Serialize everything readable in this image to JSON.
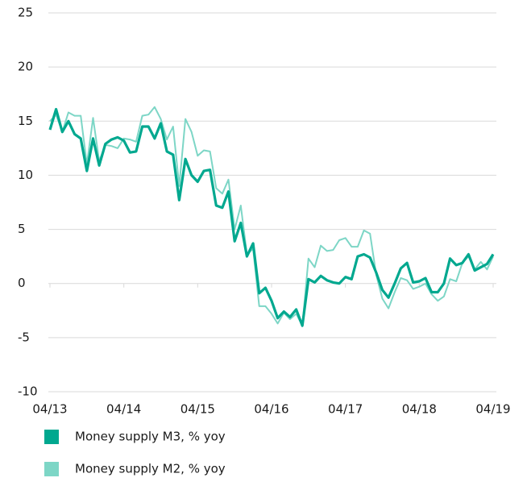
{
  "chart_data": {
    "type": "line",
    "categories": [
      "04/13",
      null,
      null,
      null,
      null,
      null,
      null,
      null,
      null,
      null,
      null,
      null,
      "04/14",
      null,
      null,
      null,
      null,
      null,
      null,
      null,
      null,
      null,
      null,
      null,
      "04/15",
      null,
      null,
      null,
      null,
      null,
      null,
      null,
      null,
      null,
      null,
      null,
      "04/16",
      null,
      null,
      null,
      null,
      null,
      null,
      null,
      null,
      null,
      null,
      null,
      "04/17",
      null,
      null,
      null,
      null,
      null,
      null,
      null,
      null,
      null,
      null,
      null,
      "04/18",
      null,
      null,
      null,
      null,
      null,
      null,
      null,
      null,
      null,
      null,
      null,
      "04/19"
    ],
    "series": [
      {
        "name": "Money supply M3, % yoy",
        "color": "#00a88f",
        "width": 3.2,
        "values": [
          14.2,
          16.1,
          14.0,
          15.0,
          13.8,
          13.4,
          10.4,
          13.4,
          10.9,
          12.9,
          13.3,
          13.5,
          13.2,
          12.1,
          12.2,
          14.5,
          14.5,
          13.4,
          14.8,
          12.2,
          11.9,
          7.7,
          11.5,
          10.0,
          9.4,
          10.4,
          10.5,
          7.2,
          7.0,
          8.5,
          3.9,
          5.6,
          2.5,
          3.7,
          -0.9,
          -0.4,
          -1.6,
          -3.2,
          -2.6,
          -3.1,
          -2.4,
          -3.9,
          0.4,
          0.1,
          0.7,
          0.3,
          0.1,
          0.0,
          0.6,
          0.4,
          2.5,
          2.7,
          2.4,
          1.0,
          -0.6,
          -1.3,
          0.0,
          1.4,
          1.9,
          0.1,
          0.2,
          0.5,
          -0.8,
          -0.8,
          0.0,
          2.3,
          1.7,
          1.9,
          2.7,
          1.2,
          1.5,
          1.8,
          2.7
        ]
      },
      {
        "name": "Money supply M2, % yoy",
        "color": "#7dd6c6",
        "width": 2,
        "values": [
          15.0,
          15.6,
          14.0,
          15.8,
          15.5,
          15.5,
          11.0,
          15.3,
          11.3,
          12.8,
          12.7,
          12.5,
          13.4,
          13.3,
          13.1,
          15.5,
          15.6,
          16.3,
          15.2,
          13.3,
          14.5,
          9.0,
          15.2,
          14.0,
          11.8,
          12.3,
          12.2,
          8.8,
          8.3,
          9.6,
          5.0,
          7.2,
          2.7,
          3.2,
          -2.1,
          -2.1,
          -2.8,
          -3.7,
          -2.7,
          -3.3,
          -2.8,
          -3.9,
          2.3,
          1.5,
          3.5,
          3.0,
          3.1,
          4.0,
          4.2,
          3.4,
          3.4,
          4.9,
          4.6,
          0.8,
          -1.4,
          -2.3,
          -0.8,
          0.5,
          0.3,
          -0.5,
          -0.3,
          0.0,
          -1.0,
          -1.6,
          -1.2,
          0.4,
          0.2,
          1.9,
          2.5,
          1.3,
          2.0,
          1.3,
          2.5
        ]
      }
    ],
    "ylim": [
      -10,
      25
    ],
    "yticks": [
      -10,
      -5,
      0,
      5,
      10,
      15,
      20,
      25
    ],
    "grid": true
  }
}
